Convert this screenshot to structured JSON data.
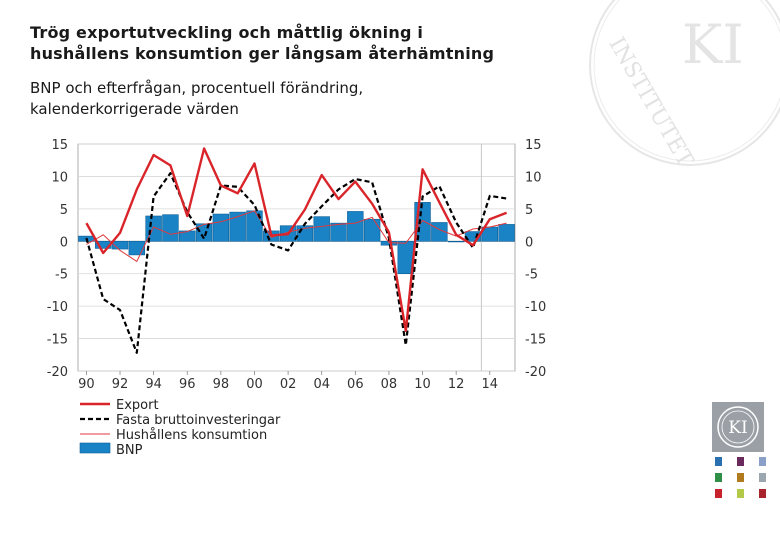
{
  "header": {
    "title_line1": "Trög exportutveckling och måttlig ökning i",
    "title_line2": "hushållens konsumtion ger långsam återhämtning",
    "subtitle_line1": "BNP och efterfrågan, procentuell förändring,",
    "subtitle_line2": "kalenderkorrigerade värden"
  },
  "brand": {
    "watermark_text": "INSTITUTET",
    "monogram": "KI"
  },
  "colors": {
    "export": "#d9252a",
    "investment": "#000000",
    "consumption": "#e03a3e",
    "gdp_fill": "#1a83c6",
    "gdp_stroke": "#0d5f96",
    "grid": "#d8d8d8",
    "swatch_colors": [
      "#2a6fb0",
      "#6b2a5e",
      "#8aa0c8",
      "#2f8f46",
      "#b07a1e",
      "#9aa7b0",
      "#c8232c",
      "#b3c94a",
      "#a8232c"
    ]
  },
  "chart_data": {
    "type": "bar+line",
    "x_start": 1990,
    "x_end": 2015,
    "xtick_labels": [
      "90",
      "92",
      "94",
      "96",
      "98",
      "00",
      "02",
      "04",
      "06",
      "08",
      "10",
      "12",
      "14"
    ],
    "ytick_labels": [
      "15",
      "10",
      "5",
      "0",
      "-5",
      "-10",
      "-15",
      "-20"
    ],
    "ytick_values": [
      15,
      10,
      5,
      0,
      -5,
      -10,
      -15,
      -20
    ],
    "ylim": [
      -20,
      15
    ],
    "forecast_start": 2014,
    "legend": [
      "Export",
      "Fasta bruttoinvesteringar",
      "Hushållens konsumtion",
      "BNP"
    ],
    "series": [
      {
        "name": "BNP",
        "kind": "bar",
        "x": [
          1990,
          1991,
          1992,
          1993,
          1994,
          1995,
          1996,
          1997,
          1998,
          1999,
          2000,
          2001,
          2002,
          2003,
          2004,
          2005,
          2006,
          2007,
          2008,
          2009,
          2010,
          2011,
          2012,
          2013,
          2014,
          2015
        ],
        "values": [
          0.8,
          -1.1,
          -1.2,
          -2.1,
          3.9,
          4.1,
          1.6,
          2.7,
          4.2,
          4.5,
          4.7,
          1.6,
          2.4,
          2.4,
          3.8,
          2.8,
          4.6,
          3.4,
          -0.6,
          -5.0,
          6.0,
          2.9,
          -0.1,
          1.5,
          2.2,
          2.6
        ]
      },
      {
        "name": "Export",
        "kind": "line",
        "x": [
          1990,
          1991,
          1992,
          1993,
          1994,
          1995,
          1996,
          1997,
          1998,
          1999,
          2000,
          2001,
          2002,
          2003,
          2004,
          2005,
          2006,
          2007,
          2008,
          2009,
          2010,
          2011,
          2012,
          2013,
          2014,
          2015
        ],
        "values": [
          2.8,
          -1.8,
          1.3,
          8.0,
          13.3,
          11.7,
          3.9,
          14.3,
          8.6,
          7.4,
          12.0,
          0.9,
          1.1,
          4.9,
          10.2,
          6.5,
          9.2,
          5.8,
          1.4,
          -13.8,
          11.1,
          6.0,
          1.0,
          -0.6,
          3.4,
          4.4
        ]
      },
      {
        "name": "Fasta bruttoinvesteringar",
        "kind": "line",
        "x": [
          1990,
          1991,
          1992,
          1993,
          1994,
          1995,
          1996,
          1997,
          1998,
          1999,
          2000,
          2001,
          2002,
          2003,
          2004,
          2005,
          2006,
          2007,
          2008,
          2009,
          2010,
          2011,
          2012,
          2013,
          2014,
          2015
        ],
        "values": [
          0.5,
          -8.9,
          -10.6,
          -17.2,
          6.9,
          10.5,
          4.5,
          0.4,
          8.6,
          8.4,
          5.6,
          -0.5,
          -1.4,
          2.7,
          5.4,
          8.0,
          9.6,
          9.1,
          0.5,
          -16.0,
          6.9,
          8.5,
          2.9,
          -1.0,
          7.0,
          6.6
        ]
      },
      {
        "name": "Hushållens konsumtion",
        "kind": "line",
        "x": [
          1990,
          1991,
          1992,
          1993,
          1994,
          1995,
          1996,
          1997,
          1998,
          1999,
          2000,
          2001,
          2002,
          2003,
          2004,
          2005,
          2006,
          2007,
          2008,
          2009,
          2010,
          2011,
          2012,
          2013,
          2014,
          2015
        ],
        "values": [
          -0.5,
          1.0,
          -1.4,
          -3.1,
          2.2,
          1.1,
          1.5,
          2.6,
          3.0,
          3.8,
          4.7,
          0.6,
          1.4,
          2.0,
          2.3,
          2.6,
          2.8,
          3.7,
          -0.2,
          -0.3,
          3.2,
          1.8,
          0.8,
          1.9,
          2.2,
          2.8
        ]
      }
    ]
  }
}
